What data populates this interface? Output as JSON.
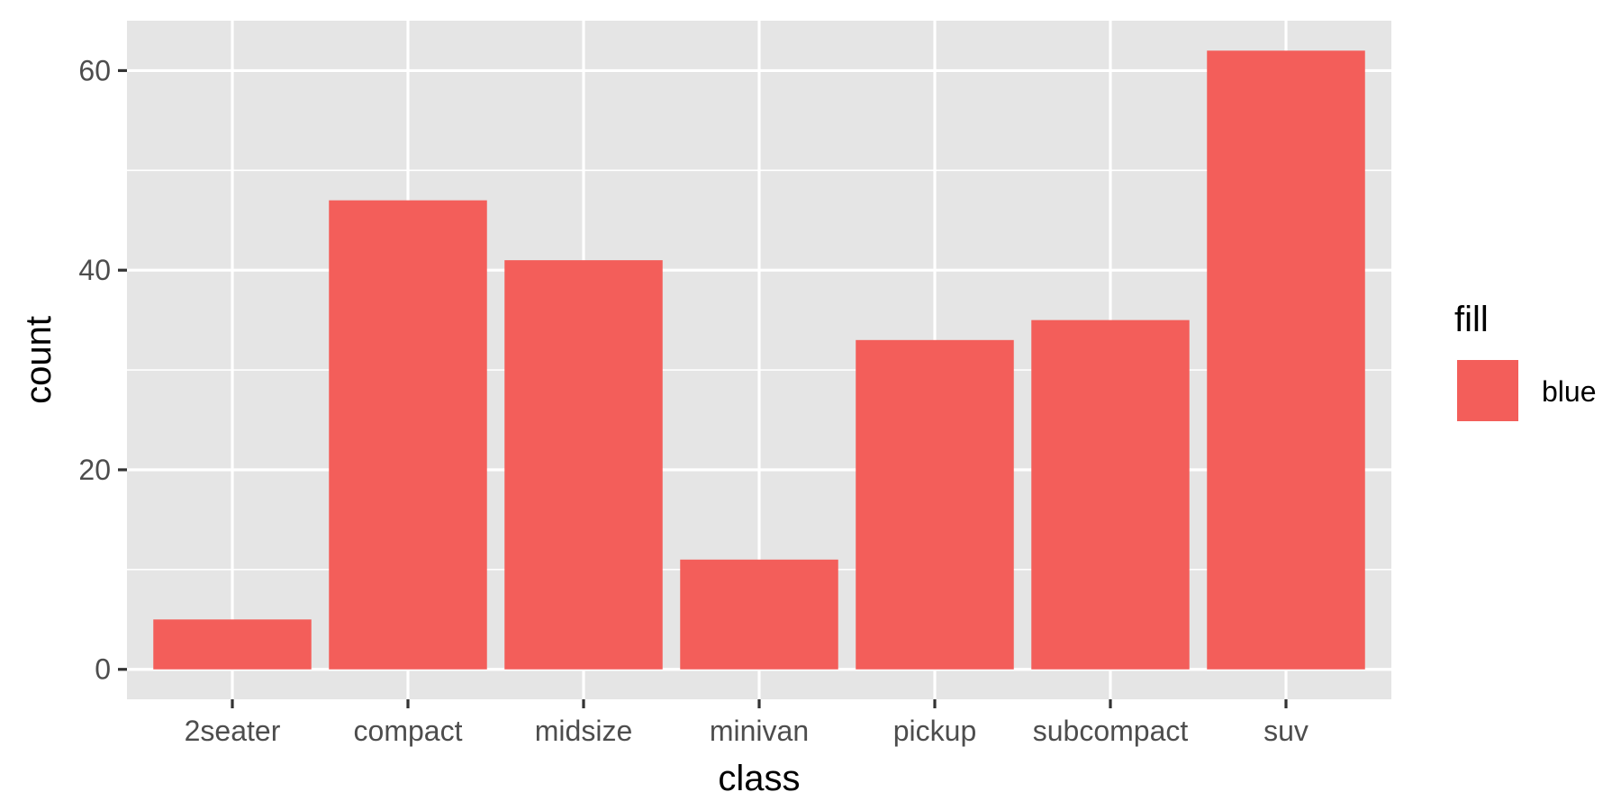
{
  "chart_data": {
    "type": "bar",
    "categories": [
      "2seater",
      "compact",
      "midsize",
      "minivan",
      "pickup",
      "subcompact",
      "suv"
    ],
    "values": [
      5,
      47,
      41,
      11,
      33,
      35,
      62
    ],
    "xlabel": "class",
    "ylabel": "count",
    "ylim": [
      -3,
      65
    ],
    "yticks": [
      0,
      20,
      40,
      60
    ],
    "grid": true,
    "legend": {
      "title": "fill",
      "placement": "right",
      "entries": [
        {
          "label": "blue",
          "color": "#F35E5A"
        }
      ]
    },
    "colors": {
      "bar": "#F35E5A",
      "panel": "#E5E5E5",
      "grid": "#FFFFFF"
    }
  }
}
